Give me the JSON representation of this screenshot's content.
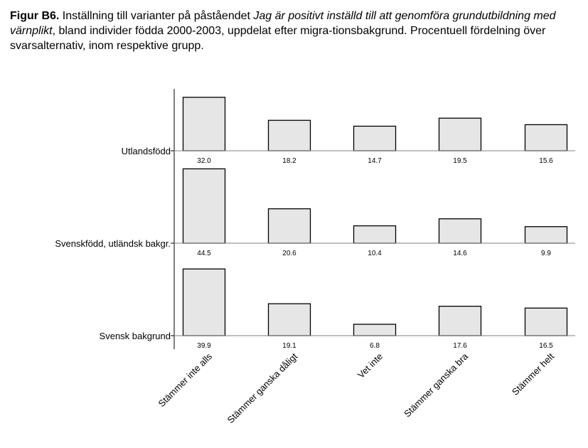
{
  "caption": {
    "label": "Figur B6.",
    "text_part1": " Inställning till varianter på påståendet ",
    "italic_part": "Jag är positivt inställd till att genomföra grundutbildning med värnplikt",
    "text_part2": ", bland individer födda 2000-2003, uppdelat efter migra-tionsbakgrund. Procentuell fördelning över svarsalternativ, inom respektive grupp."
  },
  "chart_data": {
    "type": "bar",
    "layout": "small-multiples",
    "categories": [
      "Stämmer inte alls",
      "Stämmer ganska dåligt",
      "Vet inte",
      "Stämmer ganska bra",
      "Stämmer helt"
    ],
    "series": [
      {
        "name": "Utlandsfödd",
        "values": [
          32.0,
          18.2,
          14.7,
          19.5,
          15.6
        ],
        "labels": [
          "32.0",
          "18.2",
          "14.7",
          "19.5",
          "15.6"
        ]
      },
      {
        "name": "Svenskfödd, utländsk bakgr.",
        "values": [
          44.5,
          20.6,
          10.4,
          14.6,
          9.9
        ],
        "labels": [
          "44.5",
          "20.6",
          "10.4",
          "14.6",
          "9.9"
        ]
      },
      {
        "name": "Svensk bakgrund",
        "values": [
          39.9,
          19.1,
          6.8,
          17.6,
          16.5
        ],
        "labels": [
          "39.9",
          "19.1",
          "6.8",
          "17.6",
          "16.5"
        ]
      }
    ],
    "colors": {
      "bar_fill": "#e6e6e6",
      "bar_stroke": "#000000",
      "axis": "#000000",
      "baseline": "#808080"
    }
  }
}
